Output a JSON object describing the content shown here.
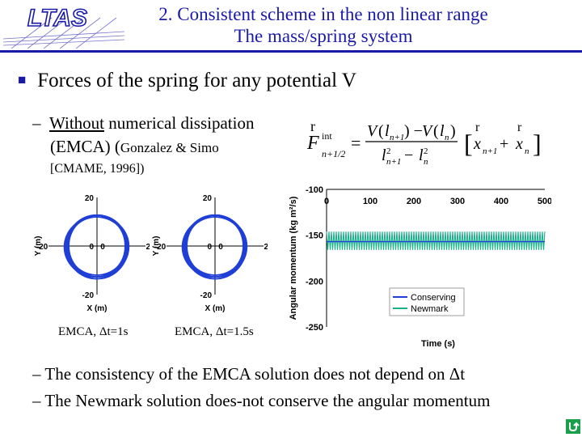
{
  "header": {
    "title_line1": "2. Consistent scheme in the non linear range",
    "title_line2": "The mass/spring system",
    "logo_text": "LTAS"
  },
  "content": {
    "bullet_main": "Forces of the spring for any potential V",
    "sub1_dash": "–",
    "sub1_underlined": "Without",
    "sub1_rest": " numerical dissipation",
    "sub1_line2a": "(EMCA) (",
    "sub1_line2b": "Gonzalez & Simo",
    "sub1_line3": "[CMAME, 1996])",
    "caption1": "EMCA, Δt=1s",
    "caption2": "EMCA, Δt=1.5s",
    "bottom1": "– The consistency of the EMCA solution does not depend on Δt",
    "bottom2": "– The Newmark solution does-not conserve the angular momentum"
  },
  "colors": {
    "accent": "#1a1aa8",
    "orbit": "#1f3fd6",
    "conserving": "#1f3fd6",
    "newmark": "#19b08a"
  },
  "chart_data": [
    {
      "type": "scatter",
      "xlabel": "X (m)",
      "ylabel": "Y (m)",
      "xticks": [
        "-20",
        "0",
        "20"
      ],
      "yticks": [
        "20",
        "0",
        "-20"
      ],
      "xlim": [
        -20,
        20
      ],
      "ylim": [
        -20,
        20
      ],
      "description_data": {
        "orbit_radius": 12
      }
    },
    {
      "type": "scatter",
      "xlabel": "X (m)",
      "ylabel": "Y (m)",
      "xticks": [
        "-20",
        "0",
        "20"
      ],
      "yticks": [
        "20",
        "0",
        "-20"
      ],
      "xlim": [
        -20,
        20
      ],
      "ylim": [
        -20,
        20
      ],
      "description_data": {
        "orbit_radius": 12
      }
    },
    {
      "type": "line",
      "xlabel": "Time (s)",
      "ylabel": "Angular momentum (kg m²/s)",
      "xticks": [
        "0",
        "100",
        "200",
        "300",
        "400",
        "500"
      ],
      "yticks": [
        "-100",
        "-150",
        "-200",
        "-250"
      ],
      "xlim": [
        0,
        500
      ],
      "ylim": [
        -250,
        -100
      ],
      "legend": "bottom-right",
      "series": [
        {
          "name": "Conserving",
          "constant": -157
        },
        {
          "name": "Newmark",
          "min": -166,
          "max": -146
        }
      ]
    }
  ]
}
